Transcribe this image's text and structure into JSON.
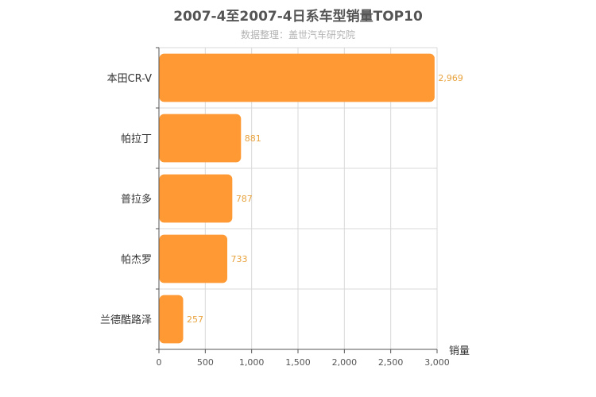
{
  "chart_data": {
    "type": "bar",
    "orientation": "horizontal",
    "title": "2007-4至2007-4日系车型销量TOP10",
    "subtitle": "数据整理：盖世汽车研究院",
    "xlabel": "销量",
    "ylabel": "",
    "xlim": [
      0,
      3000
    ],
    "xticks": [
      0,
      500,
      1000,
      1500,
      2000,
      2500,
      3000
    ],
    "xtick_labels": [
      "0",
      "500",
      "1,000",
      "1,500",
      "2,000",
      "2,500",
      "3,000"
    ],
    "grid": true,
    "categories": [
      "本田CR-V",
      "帕拉丁",
      "普拉多",
      "帕杰罗",
      "兰德酷路泽"
    ],
    "values": [
      2969,
      881,
      787,
      733,
      257
    ],
    "value_labels": [
      "2,969",
      "881",
      "787",
      "733",
      "257"
    ],
    "colors": {
      "bar": "#FF9933",
      "label": "#E8A23C",
      "grid": "#D9D9D9",
      "axis": "#555555"
    }
  }
}
